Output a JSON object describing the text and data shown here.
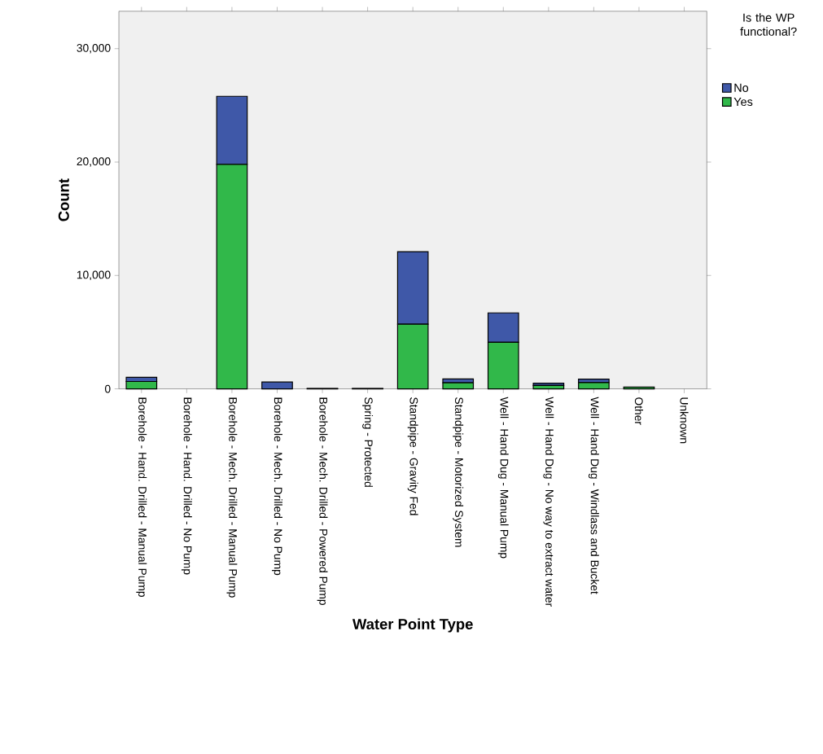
{
  "chart_data": {
    "type": "bar",
    "stacked": true,
    "xlabel": "Water Point Type",
    "ylabel": "Count",
    "legend_title": "Is the WP functional?",
    "legend": "top right",
    "grid": false,
    "categories": [
      "Borehole - Hand. Drilled - Manual Pump",
      "Borehole - Hand. Drilled - No Pump",
      "Borehole - Mech. Drilled - Manual Pump",
      "Borehole - Mech. Drilled - No Pump",
      "Borehole - Mech. Drilled - Powered Pump",
      "Spring - Protected",
      "Standpipe - Gravity Fed",
      "Standpipe - Motorized System",
      "Well - Hand Dug - Manual Pump",
      "Well - Hand Dug - No way to extract water",
      "Well - Hand Dug - Windlass and Bucket",
      "Other",
      "Unknown"
    ],
    "series": [
      {
        "name": "Yes",
        "color": "#31b84a",
        "values": [
          650,
          0,
          19800,
          0,
          20,
          20,
          5700,
          540,
          4100,
          300,
          550,
          160,
          0
        ]
      },
      {
        "name": "No",
        "color": "#3f58a8",
        "values": [
          370,
          0,
          6000,
          600,
          20,
          20,
          6400,
          330,
          2600,
          200,
          300,
          null,
          0
        ]
      }
    ],
    "ylim": [
      0,
      33300
    ],
    "yticks": [
      {
        "value": 0,
        "label": "0"
      },
      {
        "value": 10000,
        "label": "10,000"
      },
      {
        "value": 20000,
        "label": "20,000"
      },
      {
        "value": 30000,
        "label": "30,000"
      }
    ]
  }
}
